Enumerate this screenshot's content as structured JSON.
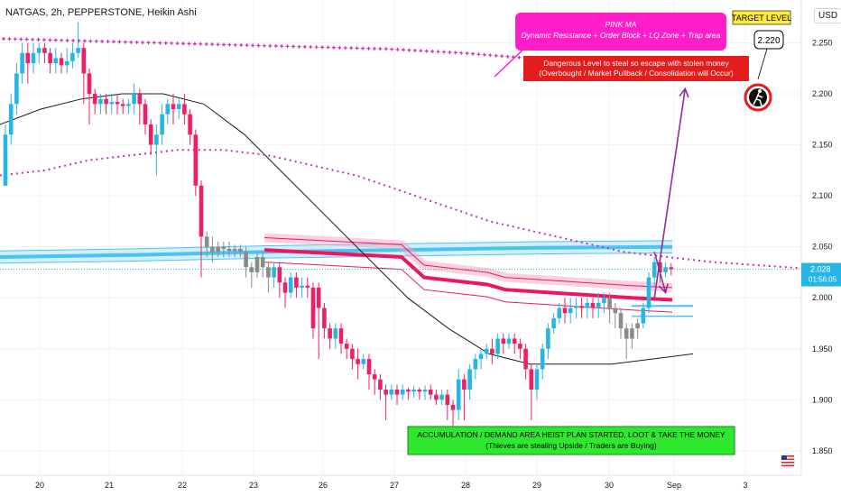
{
  "header": {
    "title": "NATGAS, 2h, PEPPERSTONE, Heikin Ashi",
    "currency": "USD"
  },
  "colors": {
    "bull": "#26b6e6",
    "bear": "#ee1f66",
    "neutral": "#8a8a8a",
    "pink_ma": "#cc2fb4",
    "ema_band": "#4dc4f0",
    "resistance": "#f0155f",
    "grid": "#f0f3fa",
    "arrow": "#8e2e9c",
    "magenta_box": "#ff1ec8",
    "red_box": "#e31c1c",
    "green_box": "#2ee82e",
    "target_bg": "#ffeb3b"
  },
  "annotations": {
    "pink_ma_title": "PINK MA",
    "pink_ma_desc": "Dynamic Resistance + Order Block + LQ Zone + Trap area",
    "danger_line1": "Dangerous Level to steal so escape with stolen money",
    "danger_line2": "(Overbought / Market Pullback / Consolidation will Occur)",
    "target_label": "TARGET LEVEL",
    "target_value": "2.220",
    "accum_line1": "ACCUMULATION / DEMAND AREA HEIST PLAN STARTED, LOOT & TAKE THE MONEY",
    "accum_line2": "(Thieves are stealing Upside / Traders are Buying)",
    "thief_icon": "thief-icon",
    "flag_icon": "us-flag-icon"
  },
  "price_label": {
    "value": "2.028",
    "countdown": "01:56:05"
  },
  "chart_data": {
    "type": "candlestick",
    "style": "Heikin Ashi",
    "x_ticks": [
      "20",
      "21",
      "22",
      "23",
      "26",
      "27",
      "28",
      "29",
      "30",
      "Sep",
      "3"
    ],
    "y_ticks": [
      2.25,
      2.2,
      2.15,
      2.1,
      2.05,
      2.0,
      1.95,
      1.9,
      1.85
    ],
    "y_tick_labels": [
      "2.250",
      "2.200",
      "2.150",
      "2.100",
      "2.050",
      "2.000",
      "1.950",
      "1.900",
      "1.850"
    ],
    "ylim": [
      1.826,
      2.292
    ],
    "n_bars": 125,
    "candles": [
      [
        2.11,
        2.16,
        2.17,
        2.11
      ],
      [
        2.16,
        2.19,
        2.2,
        2.15
      ],
      [
        2.19,
        2.22,
        2.23,
        2.18
      ],
      [
        2.22,
        2.24,
        2.25,
        2.21
      ],
      [
        2.24,
        2.23,
        2.25,
        2.21
      ],
      [
        2.23,
        2.24,
        2.25,
        2.22
      ],
      [
        2.24,
        2.245,
        2.25,
        2.23
      ],
      [
        2.245,
        2.24,
        2.25,
        2.23
      ],
      [
        2.24,
        2.23,
        2.245,
        2.22
      ],
      [
        2.23,
        2.235,
        2.245,
        2.22
      ],
      [
        2.235,
        2.228,
        2.24,
        2.22
      ],
      [
        2.228,
        2.232,
        2.245,
        2.22
      ],
      [
        2.232,
        2.24,
        2.25,
        2.225
      ],
      [
        2.24,
        2.245,
        2.27,
        2.235
      ],
      [
        2.245,
        2.22,
        2.25,
        2.19
      ],
      [
        2.22,
        2.2,
        2.225,
        2.17
      ],
      [
        2.2,
        2.19,
        2.205,
        2.18
      ],
      [
        2.19,
        2.195,
        2.2,
        2.18
      ],
      [
        2.195,
        2.19,
        2.2,
        2.18
      ],
      [
        2.19,
        2.192,
        2.2,
        2.18
      ],
      [
        2.192,
        2.19,
        2.2,
        2.18
      ],
      [
        2.19,
        2.188,
        2.195,
        2.18
      ],
      [
        2.188,
        2.19,
        2.195,
        2.18
      ],
      [
        2.19,
        2.2,
        2.21,
        2.18
      ],
      [
        2.2,
        2.19,
        2.205,
        2.17
      ],
      [
        2.19,
        2.17,
        2.195,
        2.16
      ],
      [
        2.17,
        2.15,
        2.175,
        2.14
      ],
      [
        2.15,
        2.16,
        2.17,
        2.12
      ],
      [
        2.16,
        2.18,
        2.19,
        2.15
      ],
      [
        2.18,
        2.19,
        2.195,
        2.17
      ],
      [
        2.19,
        2.185,
        2.2,
        2.17
      ],
      [
        2.185,
        2.19,
        2.195,
        2.175
      ],
      [
        2.19,
        2.18,
        2.2,
        2.17
      ],
      [
        2.18,
        2.16,
        2.185,
        2.15
      ],
      [
        2.16,
        2.11,
        2.165,
        2.1
      ],
      [
        2.11,
        2.06,
        2.115,
        2.02
      ],
      [
        2.06,
        2.05,
        2.065,
        2.04
      ],
      [
        2.05,
        2.045,
        2.06,
        2.035
      ],
      [
        2.045,
        2.05,
        2.055,
        2.04
      ],
      [
        2.05,
        2.048,
        2.055,
        2.04
      ],
      [
        2.048,
        2.046,
        2.055,
        2.04
      ],
      [
        2.046,
        2.048,
        2.052,
        2.04
      ],
      [
        2.048,
        2.045,
        2.052,
        2.04
      ],
      [
        2.045,
        2.03,
        2.05,
        2.02
      ],
      [
        2.03,
        2.025,
        2.035,
        2.01
      ],
      [
        2.025,
        2.04,
        2.045,
        2.02
      ],
      [
        2.04,
        2.03,
        2.045,
        2.02
      ],
      [
        2.03,
        2.02,
        2.035,
        2.005
      ],
      [
        2.02,
        2.03,
        2.035,
        2.01
      ],
      [
        2.03,
        2.015,
        2.035,
        2.0
      ],
      [
        2.015,
        2.005,
        2.02,
        1.99
      ],
      [
        2.005,
        2.02,
        2.025,
        2.0
      ],
      [
        2.02,
        2.01,
        2.025,
        2.0
      ],
      [
        2.01,
        2.012,
        2.02,
        2.0
      ],
      [
        2.012,
        2.01,
        2.02,
        2.0
      ],
      [
        2.01,
        1.97,
        2.015,
        1.96
      ],
      [
        2.01,
        1.99,
        2.015,
        1.94
      ],
      [
        1.99,
        1.97,
        1.995,
        1.96
      ],
      [
        1.97,
        1.96,
        1.975,
        1.95
      ],
      [
        1.96,
        1.97,
        1.975,
        1.95
      ],
      [
        1.97,
        1.955,
        1.975,
        1.945
      ],
      [
        1.955,
        1.95,
        1.96,
        1.94
      ],
      [
        1.95,
        1.94,
        1.955,
        1.93
      ],
      [
        1.94,
        1.935,
        1.95,
        1.92
      ],
      [
        1.935,
        1.94,
        1.945,
        1.93
      ],
      [
        1.94,
        1.925,
        1.945,
        1.91
      ],
      [
        1.925,
        1.92,
        1.93,
        1.905
      ],
      [
        1.92,
        1.91,
        1.925,
        1.9
      ],
      [
        1.91,
        1.905,
        1.915,
        1.88
      ],
      [
        1.905,
        1.91,
        1.915,
        1.9
      ],
      [
        1.91,
        1.905,
        1.915,
        1.895
      ],
      [
        1.905,
        1.91,
        1.915,
        1.9
      ],
      [
        1.91,
        1.908,
        1.912,
        1.9
      ],
      [
        1.908,
        1.91,
        1.914,
        1.902
      ],
      [
        1.91,
        1.908,
        1.912,
        1.9
      ],
      [
        1.908,
        1.91,
        1.914,
        1.9
      ],
      [
        1.91,
        1.905,
        1.915,
        1.9
      ],
      [
        1.905,
        1.9,
        1.91,
        1.895
      ],
      [
        1.9,
        1.905,
        1.91,
        1.895
      ],
      [
        1.905,
        1.895,
        1.91,
        1.88
      ],
      [
        1.895,
        1.89,
        1.9,
        1.87
      ],
      [
        1.89,
        1.92,
        1.93,
        1.88
      ],
      [
        1.92,
        1.91,
        1.925,
        1.88
      ],
      [
        1.91,
        1.93,
        1.935,
        1.9
      ],
      [
        1.93,
        1.94,
        1.945,
        1.92
      ],
      [
        1.94,
        1.945,
        1.95,
        1.93
      ],
      [
        1.945,
        1.95,
        1.955,
        1.94
      ],
      [
        1.95,
        1.945,
        1.96,
        1.935
      ],
      [
        1.945,
        1.96,
        1.965,
        1.94
      ],
      [
        1.96,
        1.955,
        1.965,
        1.945
      ],
      [
        1.955,
        1.96,
        1.965,
        1.95
      ],
      [
        1.96,
        1.955,
        1.965,
        1.945
      ],
      [
        1.955,
        1.95,
        1.96,
        1.94
      ],
      [
        1.95,
        1.93,
        1.955,
        1.92
      ],
      [
        1.93,
        1.91,
        1.935,
        1.88
      ],
      [
        1.91,
        1.93,
        1.935,
        1.9
      ],
      [
        1.93,
        1.95,
        1.955,
        1.92
      ],
      [
        1.95,
        1.97,
        1.975,
        1.94
      ],
      [
        1.97,
        1.98,
        1.985,
        1.965
      ],
      [
        1.98,
        1.99,
        1.995,
        1.975
      ],
      [
        1.99,
        1.985,
        2.0,
        1.975
      ],
      [
        1.985,
        1.99,
        2.0,
        1.975
      ],
      [
        1.99,
        1.992,
        2.0,
        1.98
      ],
      [
        1.992,
        1.99,
        2.0,
        1.98
      ],
      [
        1.99,
        1.995,
        2.0,
        1.98
      ],
      [
        1.995,
        1.99,
        2.0,
        1.98
      ],
      [
        1.99,
        1.995,
        2.005,
        1.98
      ],
      [
        1.995,
        2.0,
        2.005,
        1.985
      ],
      [
        2.0,
        1.99,
        2.005,
        1.975
      ],
      [
        1.99,
        1.985,
        1.995,
        1.97
      ],
      [
        1.985,
        1.97,
        1.99,
        1.96
      ],
      [
        1.97,
        1.96,
        1.975,
        1.94
      ],
      [
        1.96,
        1.97,
        1.975,
        1.95
      ],
      [
        1.97,
        1.975,
        1.98,
        1.96
      ],
      [
        1.975,
        1.99,
        1.995,
        1.97
      ],
      [
        1.99,
        2.02,
        2.025,
        1.985
      ],
      [
        2.02,
        2.035,
        2.04,
        2.01
      ],
      [
        2.035,
        2.025,
        2.04,
        2.015
      ],
      [
        2.025,
        2.03,
        2.035,
        2.02
      ],
      [
        2.03,
        2.028,
        2.034,
        2.022
      ]
    ],
    "pink_ma": [
      2.254,
      2.253,
      2.252,
      2.251,
      2.25,
      2.249,
      2.248,
      2.247,
      2.246,
      2.245,
      2.244,
      2.242,
      2.24,
      2.237,
      2.234,
      2.231,
      2.228,
      2.226,
      2.224
    ],
    "dotted_ma": [
      2.12,
      2.125,
      2.135,
      2.14,
      2.145,
      2.145,
      2.14,
      2.13,
      2.12,
      2.105,
      2.09,
      2.075,
      2.065,
      2.055,
      2.045,
      2.04,
      2.035,
      2.032,
      2.029
    ],
    "slow_ma": [
      2.17,
      2.185,
      2.195,
      2.2,
      2.2,
      2.19,
      2.16,
      2.12,
      2.08,
      2.04,
      2.0,
      1.97,
      1.945,
      1.935,
      1.935,
      1.935,
      1.94,
      1.945
    ],
    "ema_band": [
      2.04,
      2.042,
      2.045,
      2.047,
      2.049,
      2.05
    ],
    "resistance_band": [
      2.047,
      2.04,
      2.02,
      2.013,
      2.008,
      2.0,
      1.998
    ],
    "arrows": [
      {
        "from": [
          116,
          2.0
        ],
        "to": [
          121.5,
          2.205
        ]
      },
      {
        "from": [
          116,
          2.045
        ],
        "to": [
          118,
          2.005
        ]
      }
    ]
  }
}
